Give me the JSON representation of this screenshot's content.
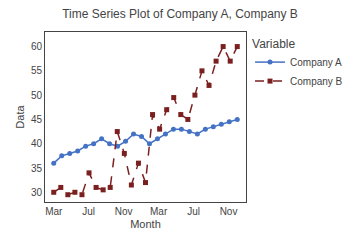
{
  "chart_data": {
    "type": "line",
    "title": "Time Series Plot of Company A, Company B",
    "xlabel": "Month",
    "ylabel": "Data",
    "xlim": [
      0,
      23
    ],
    "xticks": [
      {
        "value": 1,
        "label": "Mar"
      },
      {
        "value": 5,
        "label": "Jul"
      },
      {
        "value": 9,
        "label": "Nov"
      },
      {
        "value": 13,
        "label": "Mar"
      },
      {
        "value": 17,
        "label": "Jul"
      },
      {
        "value": 21,
        "label": "Nov"
      }
    ],
    "ylim": [
      28,
      63
    ],
    "yticks": [
      30,
      35,
      40,
      45,
      50,
      55,
      60
    ],
    "grid": false,
    "legend": "right",
    "legend_title": "Variable",
    "series": [
      {
        "name": "Company A",
        "color": "#4472c4",
        "marker": "circle",
        "line_style": "solid",
        "x": [
          1,
          1.913043,
          2.826087,
          3.73913,
          4.652174,
          5.565217,
          6.478261,
          7.391304,
          8.304348,
          9.217391,
          10.130435,
          11.043478,
          11.956522,
          12.869565,
          13.782609,
          14.695652,
          15.608696,
          16.521739,
          17.434783,
          18.347826,
          19.26087,
          20.173913,
          21.086957,
          22
        ],
        "values": [
          36,
          37.5,
          38,
          38.5,
          39.5,
          40,
          41,
          40,
          39.5,
          40.5,
          42,
          41.5,
          40,
          41,
          42,
          43,
          43,
          42.5,
          42,
          43,
          43.5,
          44,
          44.5,
          45
        ]
      },
      {
        "name": "Company B",
        "color": "#7b2020",
        "marker": "square",
        "line_style": "dashed",
        "x": [
          1,
          1.807692,
          2.615385,
          3.423077,
          4.230769,
          5.038462,
          5.846154,
          6.653846,
          7.461538,
          8.269231,
          9.076923,
          9.884615,
          10.692308,
          11.5,
          12.307692,
          13.115385,
          13.923077,
          14.730769,
          15.538462,
          16.346154,
          17.153846,
          17.961538,
          18.769231,
          19.576923,
          20.384615,
          21.192308,
          22
        ],
        "values": [
          30,
          31,
          29.5,
          30,
          29.5,
          34,
          31,
          30.5,
          31,
          42.5,
          38,
          31.5,
          36,
          32,
          46,
          43,
          47,
          49.5,
          46,
          45,
          50,
          55,
          52,
          57,
          60,
          57,
          60
        ]
      }
    ]
  }
}
